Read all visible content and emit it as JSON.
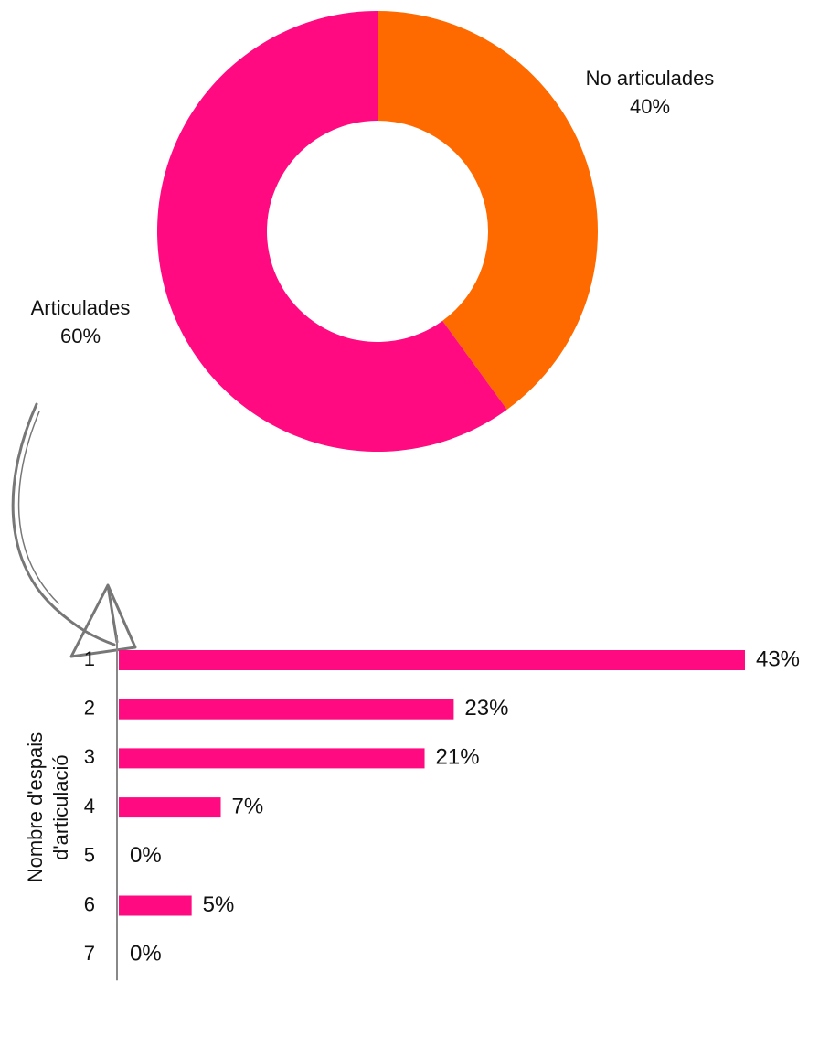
{
  "chart_data": [
    {
      "type": "donut",
      "categories": [
        "No articulades",
        "Articulades"
      ],
      "values": [
        40,
        60
      ],
      "value_labels": [
        "40%",
        "60%"
      ],
      "colors": [
        "#ff6a00",
        "#ff0a80"
      ]
    },
    {
      "type": "hbar",
      "ylabel": [
        "Nombre d'espais",
        "d'articulació"
      ],
      "categories": [
        "1",
        "2",
        "3",
        "4",
        "5",
        "6",
        "7"
      ],
      "values": [
        43,
        23,
        21,
        7,
        0,
        5,
        0
      ],
      "value_labels": [
        "43%",
        "23%",
        "21%",
        "7%",
        "0%",
        "5%",
        "0%"
      ],
      "color": "#ff0a80"
    }
  ]
}
